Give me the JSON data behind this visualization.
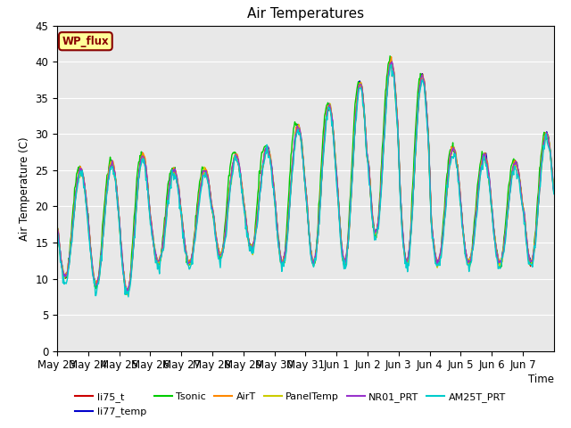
{
  "title": "Air Temperatures",
  "ylabel": "Air Temperature (C)",
  "xlabel": "Time",
  "ylim": [
    0,
    45
  ],
  "background_color": "#ffffff",
  "plot_bg_color": "#e8e8e8",
  "grid_color": "#ffffff",
  "annotation_text": "WP_flux",
  "annotation_bg": "#ffff99",
  "annotation_border": "#880000",
  "series_colors": {
    "li75_t": "#cc0000",
    "li77_temp": "#0000cc",
    "Tsonic": "#00cc00",
    "AirT": "#ff8800",
    "PanelTemp": "#cccc00",
    "NR01_PRT": "#9933cc",
    "AM25T_PRT": "#00cccc"
  },
  "x_tick_labels": [
    "May 23",
    "May 24",
    "May 25",
    "May 26",
    "May 27",
    "May 28",
    "May 29",
    "May 30",
    "May 31",
    "Jun 1",
    "Jun 2",
    "Jun 3",
    "Jun 4",
    "Jun 5",
    "Jun 6",
    "Jun 7"
  ],
  "n_days": 16,
  "pts_per_day": 48,
  "day_peaks": [
    25,
    26,
    27,
    25,
    25,
    27,
    28,
    31,
    34,
    37,
    40,
    38,
    28,
    27,
    26,
    30
  ],
  "day_mins": [
    10,
    9,
    8,
    12,
    12,
    13,
    14,
    12,
    12,
    12,
    16,
    12,
    12,
    12,
    12,
    12
  ],
  "tsonic_extra": [
    2,
    2,
    3,
    2,
    2,
    3,
    3,
    4,
    3,
    3,
    3,
    3,
    2,
    2,
    2,
    2
  ]
}
